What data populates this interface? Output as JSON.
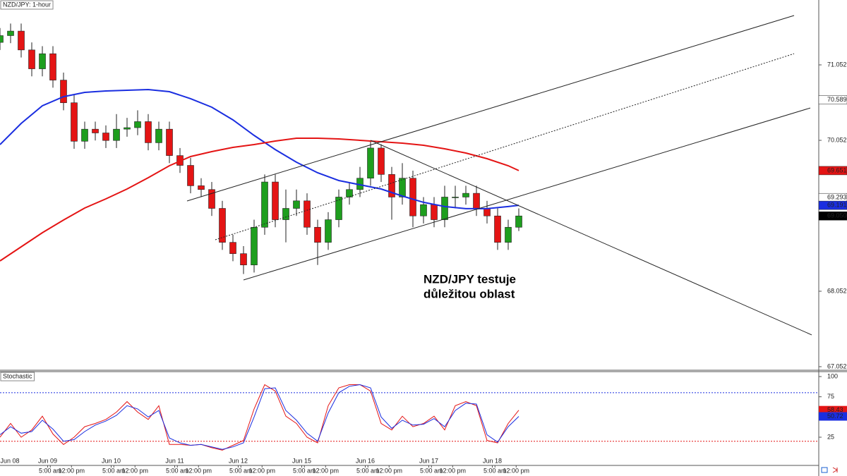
{
  "chart_data": [
    {
      "type": "candlestick",
      "title": "NZD/JPY: 1-hour",
      "x": [
        0,
        4,
        8,
        12,
        16,
        20,
        24,
        28,
        32,
        36,
        40,
        44,
        48,
        52,
        56,
        60,
        64,
        68,
        72,
        76,
        80,
        84,
        88,
        92,
        96,
        100,
        104,
        108,
        112,
        116,
        120,
        124,
        128,
        132,
        136,
        140,
        144,
        148,
        152,
        156,
        160,
        164,
        168,
        172,
        176,
        180,
        184,
        188,
        192,
        196
      ],
      "open": [
        71.35,
        71.44,
        71.5,
        71.25,
        71.0,
        71.2,
        70.85,
        70.55,
        70.04,
        70.2,
        70.15,
        70.05,
        70.2,
        70.22,
        70.3,
        70.02,
        70.2,
        69.85,
        69.72,
        69.45,
        69.4,
        69.15,
        68.7,
        68.55,
        68.4,
        68.9,
        69.5,
        69.0,
        69.15,
        69.25,
        68.9,
        68.7,
        69.0,
        69.3,
        69.4,
        69.55,
        69.95,
        69.6,
        69.3,
        69.55,
        69.05,
        69.2,
        69.0,
        69.3,
        69.3,
        69.35,
        69.15,
        69.05,
        68.7,
        68.9
      ],
      "high": [
        71.54,
        71.6,
        71.6,
        71.35,
        71.3,
        71.3,
        70.95,
        70.65,
        70.3,
        70.3,
        70.25,
        70.4,
        70.35,
        70.45,
        70.4,
        70.3,
        70.3,
        69.95,
        69.82,
        69.55,
        69.5,
        69.25,
        68.8,
        68.65,
        69.0,
        69.6,
        69.6,
        69.4,
        69.4,
        69.35,
        69.0,
        69.1,
        69.4,
        69.5,
        69.7,
        70.05,
        70.0,
        69.7,
        69.75,
        69.65,
        69.3,
        69.3,
        69.45,
        69.45,
        69.45,
        69.45,
        69.25,
        69.15,
        69.0,
        69.15
      ],
      "low": [
        71.25,
        71.34,
        71.15,
        70.9,
        70.9,
        70.75,
        70.45,
        69.94,
        69.94,
        70.05,
        69.95,
        69.95,
        70.1,
        70.12,
        69.92,
        69.92,
        69.75,
        69.62,
        69.35,
        69.3,
        69.05,
        68.6,
        68.45,
        68.28,
        68.3,
        68.8,
        68.9,
        68.7,
        69.05,
        68.8,
        68.4,
        68.6,
        68.9,
        69.2,
        69.3,
        69.45,
        69.5,
        69.0,
        69.2,
        68.9,
        68.95,
        68.9,
        68.9,
        69.15,
        69.2,
        69.05,
        68.95,
        68.6,
        68.6,
        68.85
      ],
      "close": [
        71.44,
        71.5,
        71.25,
        71.0,
        71.2,
        70.85,
        70.55,
        70.04,
        70.2,
        70.15,
        70.05,
        70.2,
        70.22,
        70.3,
        70.02,
        70.2,
        69.85,
        69.72,
        69.45,
        69.4,
        69.15,
        68.7,
        68.55,
        68.4,
        68.9,
        69.5,
        69.0,
        69.15,
        69.25,
        68.9,
        68.7,
        69.0,
        69.3,
        69.4,
        69.55,
        69.95,
        69.6,
        69.3,
        69.55,
        69.05,
        69.2,
        69.0,
        69.3,
        69.3,
        69.35,
        69.15,
        69.05,
        68.7,
        68.9,
        69.05
      ],
      "up_color": "#1e9e1e",
      "down_color": "#e41414",
      "lines": [
        {
          "color": "#1a2ee0",
          "x": [
            0,
            8,
            16,
            24,
            32,
            40,
            48,
            56,
            64,
            72,
            80,
            88,
            96,
            104,
            112,
            120,
            128,
            136,
            144,
            152,
            160,
            168,
            176,
            184,
            192,
            196
          ],
          "values": [
            69.996,
            70.276,
            70.51,
            70.631,
            70.688,
            70.706,
            70.716,
            70.725,
            70.697,
            70.604,
            70.491,
            70.323,
            70.117,
            69.93,
            69.762,
            69.622,
            69.519,
            69.463,
            69.407,
            69.314,
            69.23,
            69.174,
            69.146,
            69.146,
            69.174,
            69.191
          ]
        },
        {
          "color": "#e41414",
          "x": [
            0,
            8,
            16,
            24,
            32,
            40,
            48,
            56,
            64,
            72,
            80,
            88,
            96,
            104,
            112,
            120,
            128,
            136,
            144,
            152,
            160,
            168,
            176,
            184,
            192,
            196
          ],
          "values": [
            68.454,
            68.641,
            68.828,
            68.996,
            69.155,
            69.276,
            69.407,
            69.557,
            69.716,
            69.837,
            69.902,
            69.959,
            69.996,
            70.043,
            70.08,
            70.08,
            70.071,
            70.052,
            70.033,
            70.015,
            69.987,
            69.94,
            69.884,
            69.809,
            69.716,
            69.651
          ]
        }
      ],
      "trendlines": [
        {
          "x": [
            70.67,
            300
          ],
          "values": [
            69.248,
            71.706
          ],
          "dashed": false
        },
        {
          "x": [
            81.33,
            300
          ],
          "values": [
            68.734,
            71.201
          ],
          "dashed": true
        },
        {
          "x": [
            92,
            306.13
          ],
          "values": [
            68.201,
            70.481
          ],
          "dashed": false
        },
        {
          "x": [
            140,
            306.67
          ],
          "values": [
            70.052,
            67.473
          ],
          "dashed": false
        }
      ],
      "xlim": [
        0,
        309.33
      ],
      "ylim": [
        67.005,
        71.912
      ],
      "yticks": [
        67.052,
        68.052,
        70.052,
        71.052
      ],
      "price_labels": [
        {
          "value": 70.589,
          "label": "70.589",
          "bg": "#ffffff",
          "fg": "#000000"
        },
        {
          "value": 69.651,
          "label": "69.651",
          "bg": "#e41414",
          "fg": "#ffffff"
        },
        {
          "value": 69.293,
          "label": "69.293",
          "bg": "#ffffff",
          "fg": "#000000"
        },
        {
          "value": 69.191,
          "label": "69.191",
          "bg": "#1a2ee0",
          "fg": "#ffffff"
        },
        {
          "value": 69.05,
          "label": "69.050",
          "bg": "#000000",
          "fg": "#ffffff"
        }
      ],
      "annotation": [
        "NZD/JPY testuje",
        "důležitou oblast"
      ]
    },
    {
      "type": "line",
      "title": "Stochastic",
      "x": [
        0,
        4,
        8,
        12,
        16,
        20,
        24,
        28,
        32,
        36,
        40,
        44,
        48,
        52,
        56,
        60,
        64,
        68,
        72,
        76,
        80,
        84,
        88,
        92,
        96,
        100,
        104,
        108,
        112,
        116,
        120,
        124,
        128,
        132,
        136,
        140,
        144,
        148,
        152,
        156,
        160,
        164,
        168,
        172,
        176,
        180,
        184,
        188,
        192,
        196
      ],
      "lines": [
        {
          "color": "#e41414",
          "values": [
            25,
            42,
            25,
            34,
            51,
            29,
            16,
            25,
            38,
            42,
            47,
            56,
            69,
            56,
            47,
            64,
            16,
            16,
            15,
            16,
            12,
            9,
            15,
            21,
            60,
            90,
            82,
            51,
            42,
            25,
            18,
            64,
            86,
            90,
            90,
            82,
            42,
            34,
            51,
            38,
            42,
            51,
            34,
            64,
            69,
            64,
            21,
            18,
            42,
            58.43
          ]
        },
        {
          "color": "#1a2ee0",
          "values": [
            28,
            38,
            30,
            32,
            46,
            35,
            20,
            22,
            32,
            40,
            45,
            52,
            64,
            60,
            50,
            58,
            24,
            18,
            15,
            16,
            13,
            10,
            13,
            18,
            50,
            85,
            86,
            58,
            46,
            30,
            20,
            55,
            80,
            88,
            90,
            86,
            50,
            36,
            46,
            40,
            41,
            48,
            38,
            58,
            67,
            66,
            28,
            19,
            38,
            50.72
          ]
        }
      ],
      "levels": [
        {
          "value": 80,
          "color": "#1a2ee0"
        },
        {
          "value": 20,
          "color": "#e41414"
        }
      ],
      "xlim": [
        0,
        309.33
      ],
      "ylim": [
        -9.9,
        106.1
      ],
      "yticks": [
        25,
        75,
        100
      ],
      "xticks": [
        {
          "value": -6,
          "label": "Jun 08"
        },
        {
          "value": 18,
          "label": "Jun 09"
        },
        {
          "value": 42,
          "label": "Jun 10"
        },
        {
          "value": 66,
          "label": "Jun 11"
        },
        {
          "value": 90,
          "label": "Jun 12"
        },
        {
          "value": 114,
          "label": "Jun 15"
        },
        {
          "value": 138,
          "label": "Jun 16"
        },
        {
          "value": 162,
          "label": "Jun 17"
        },
        {
          "value": 186,
          "label": "Jun 18"
        }
      ],
      "xticks_time": [
        {
          "value": 19,
          "label": "5:00 am"
        },
        {
          "value": 27,
          "label": "12:00 pm"
        },
        {
          "value": 43,
          "label": "5:00 am"
        },
        {
          "value": 51,
          "label": "12:00 pm"
        },
        {
          "value": 67,
          "label": "5:00 am"
        },
        {
          "value": 75,
          "label": "12:00 pm"
        },
        {
          "value": 91,
          "label": "5:00 am"
        },
        {
          "value": 99,
          "label": "12:00 pm"
        },
        {
          "value": 115,
          "label": "5:00 am"
        },
        {
          "value": 123,
          "label": "12:00 pm"
        },
        {
          "value": 139,
          "label": "5:00 am"
        },
        {
          "value": 147,
          "label": "12:00 pm"
        },
        {
          "value": 163,
          "label": "5:00 am"
        },
        {
          "value": 171,
          "label": "12:00 pm"
        },
        {
          "value": 187,
          "label": "5:00 am"
        },
        {
          "value": 195,
          "label": "12:00 pm"
        }
      ]
    }
  ]
}
